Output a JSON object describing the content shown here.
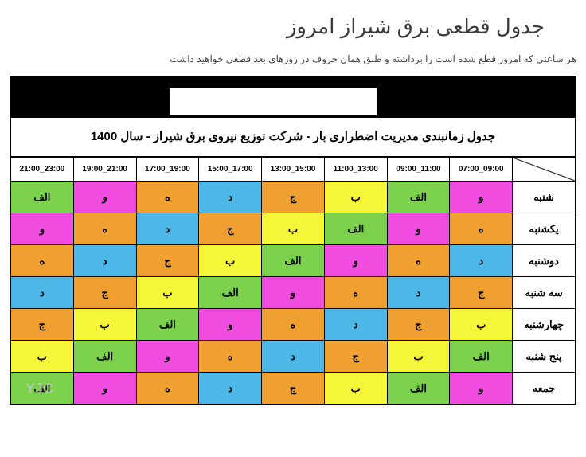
{
  "page_title": "جدول قطعی برق شیراز امروز",
  "subtitle": "هر ساعتی که امروز قطع شده است را برداشته و طبق همان حروف در روزهای بعد قطعی خواهید داشت",
  "inner_title": "جدول زمانبندی مدیریت اضطراری بار - شرکت توزیع نیروی برق شیراز - سال 1400",
  "watermark": "YJC",
  "colors": {
    "green": "#7bd14c",
    "magenta": "#f04de0",
    "orange": "#f0a030",
    "blue": "#4db8e8",
    "yellow": "#f5f53a",
    "white": "#ffffff",
    "black": "#000000"
  },
  "time_headers": [
    "21:00_23:00",
    "19:00_21:00",
    "17:00_19:00",
    "15:00_17:00",
    "13:00_15:00",
    "11:00_13:00",
    "09:00_11:00",
    "07:00_09:00"
  ],
  "days": [
    "شنبه",
    "یکشنبه",
    "دوشنبه",
    "سه شنبه",
    "چهارشنبه",
    "پنج شنبه",
    "جمعه"
  ],
  "cells": [
    [
      {
        "t": "الف",
        "c": "green"
      },
      {
        "t": "و",
        "c": "magenta"
      },
      {
        "t": "ه",
        "c": "orange"
      },
      {
        "t": "د",
        "c": "blue"
      },
      {
        "t": "ج",
        "c": "orange"
      },
      {
        "t": "ب",
        "c": "yellow"
      },
      {
        "t": "الف",
        "c": "green"
      },
      {
        "t": "و",
        "c": "magenta"
      }
    ],
    [
      {
        "t": "و",
        "c": "magenta"
      },
      {
        "t": "ه",
        "c": "orange"
      },
      {
        "t": "د",
        "c": "blue"
      },
      {
        "t": "ج",
        "c": "orange"
      },
      {
        "t": "ب",
        "c": "yellow"
      },
      {
        "t": "الف",
        "c": "green"
      },
      {
        "t": "و",
        "c": "magenta"
      },
      {
        "t": "ه",
        "c": "orange"
      }
    ],
    [
      {
        "t": "ه",
        "c": "orange"
      },
      {
        "t": "د",
        "c": "blue"
      },
      {
        "t": "ج",
        "c": "orange"
      },
      {
        "t": "ب",
        "c": "yellow"
      },
      {
        "t": "الف",
        "c": "green"
      },
      {
        "t": "و",
        "c": "magenta"
      },
      {
        "t": "ه",
        "c": "orange"
      },
      {
        "t": "د",
        "c": "blue"
      }
    ],
    [
      {
        "t": "د",
        "c": "blue"
      },
      {
        "t": "ج",
        "c": "orange"
      },
      {
        "t": "ب",
        "c": "yellow"
      },
      {
        "t": "الف",
        "c": "green"
      },
      {
        "t": "و",
        "c": "magenta"
      },
      {
        "t": "ه",
        "c": "orange"
      },
      {
        "t": "د",
        "c": "blue"
      },
      {
        "t": "ج",
        "c": "orange"
      }
    ],
    [
      {
        "t": "ج",
        "c": "orange"
      },
      {
        "t": "ب",
        "c": "yellow"
      },
      {
        "t": "الف",
        "c": "green"
      },
      {
        "t": "و",
        "c": "magenta"
      },
      {
        "t": "ه",
        "c": "orange"
      },
      {
        "t": "د",
        "c": "blue"
      },
      {
        "t": "ج",
        "c": "orange"
      },
      {
        "t": "ب",
        "c": "yellow"
      }
    ],
    [
      {
        "t": "ب",
        "c": "yellow"
      },
      {
        "t": "الف",
        "c": "green"
      },
      {
        "t": "و",
        "c": "magenta"
      },
      {
        "t": "ه",
        "c": "orange"
      },
      {
        "t": "د",
        "c": "blue"
      },
      {
        "t": "ج",
        "c": "orange"
      },
      {
        "t": "ب",
        "c": "yellow"
      },
      {
        "t": "الف",
        "c": "green"
      }
    ],
    [
      {
        "t": "الف",
        "c": "green"
      },
      {
        "t": "و",
        "c": "magenta"
      },
      {
        "t": "ه",
        "c": "orange"
      },
      {
        "t": "د",
        "c": "blue"
      },
      {
        "t": "ج",
        "c": "orange"
      },
      {
        "t": "ب",
        "c": "yellow"
      },
      {
        "t": "الف",
        "c": "green"
      },
      {
        "t": "و",
        "c": "magenta"
      }
    ]
  ]
}
